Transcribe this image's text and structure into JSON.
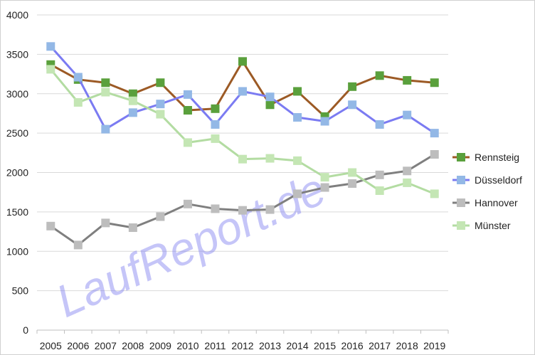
{
  "chart_data": {
    "type": "line",
    "x": [
      "2005",
      "2006",
      "2007",
      "2008",
      "2009",
      "2010",
      "2011",
      "2012",
      "2013",
      "2014",
      "2015",
      "2016",
      "2017",
      "2018",
      "2019"
    ],
    "ylim": [
      0,
      4000
    ],
    "yticks": [
      "0",
      "500",
      "1000",
      "1500",
      "2000",
      "2500",
      "3000",
      "3500",
      "4000"
    ],
    "grid": true,
    "legend_position": "right",
    "watermark": "LaufReport.de",
    "series": [
      {
        "name": "Rennsteig",
        "line_color": "#9c5a25",
        "marker_color": "#5aa03c",
        "values": [
          3370,
          3180,
          3140,
          3000,
          3140,
          2790,
          2810,
          3410,
          2860,
          3030,
          2710,
          3090,
          3230,
          3170,
          3140
        ]
      },
      {
        "name": "Düsseldorf",
        "line_color": "#7b7bf2",
        "marker_color": "#93b8e6",
        "values": [
          3600,
          3210,
          2550,
          2760,
          2870,
          2990,
          2610,
          3030,
          2960,
          2700,
          2650,
          2860,
          2610,
          2730,
          2500
        ]
      },
      {
        "name": "Hannover",
        "line_color": "#7f7f7f",
        "marker_color": "#bdbdbd",
        "values": [
          1320,
          1080,
          1360,
          1300,
          1440,
          1600,
          1540,
          1520,
          1530,
          1730,
          1810,
          1860,
          1970,
          2020,
          2230
        ]
      },
      {
        "name": "Münster",
        "line_color": "#b3dca2",
        "marker_color": "#c4e6b4",
        "values": [
          3310,
          2890,
          3020,
          2910,
          2740,
          2380,
          2430,
          2170,
          2180,
          2150,
          1940,
          2000,
          1770,
          1870,
          1730
        ]
      }
    ]
  }
}
